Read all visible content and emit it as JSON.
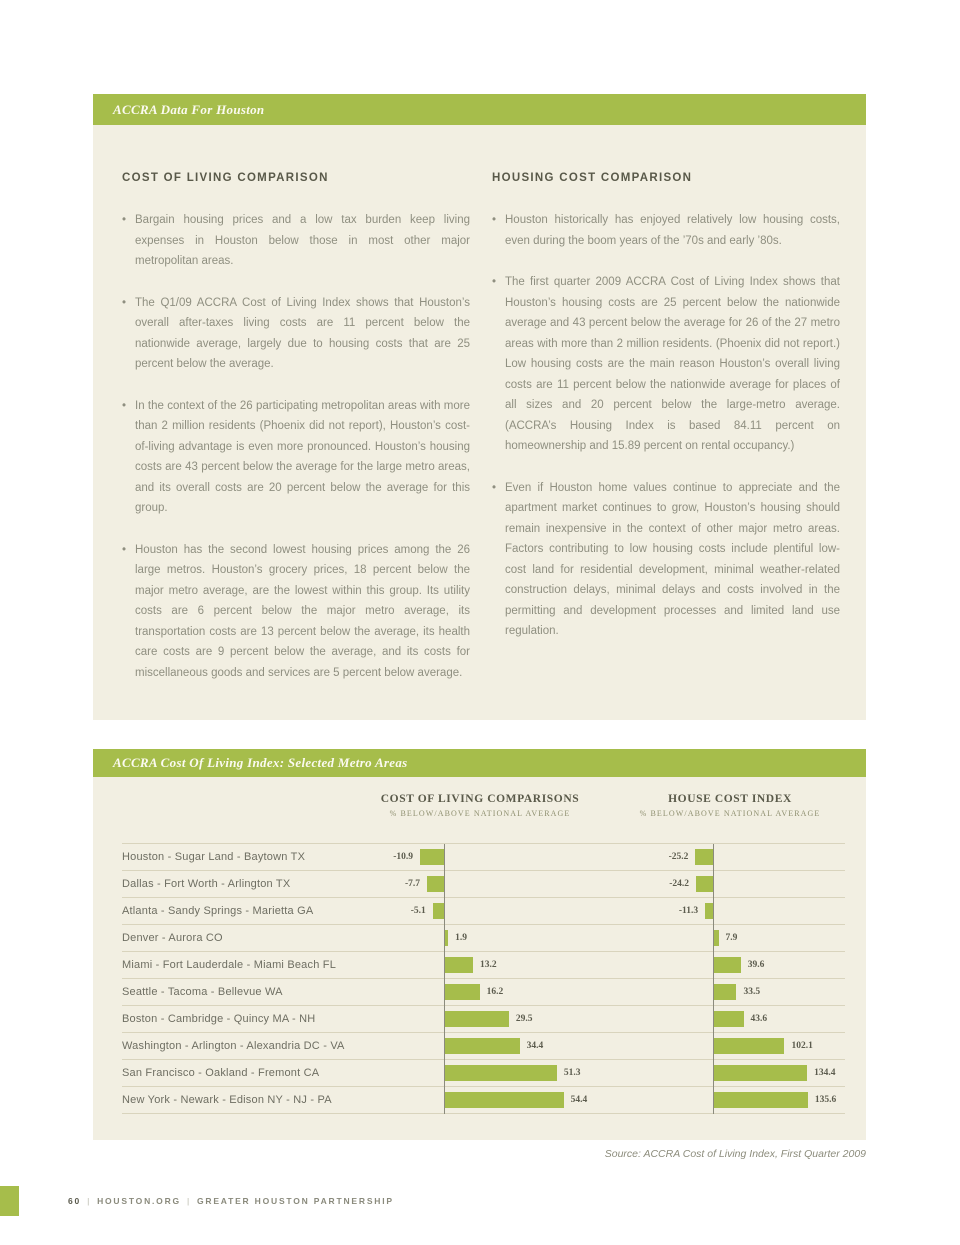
{
  "colors": {
    "accent_green": "#a6bd4b",
    "panel_cream": "#f2efe2",
    "body_text": "#8f8f80",
    "heading_text": "#595949"
  },
  "accra_section": {
    "header": "ACCRA Data For Houston",
    "columns": [
      {
        "heading": "COST OF LIVING COMPARISON",
        "bullets": [
          "Bargain housing prices and a low tax burden keep living expenses in Houston below those in most other major metropolitan areas.",
          "The Q1/09 ACCRA Cost of Living Index shows that Houston’s overall after-taxes living costs are 11 percent below the nationwide average, largely due to housing costs that are 25 percent below the average.",
          "In the context of the 26 participating metropolitan areas with more than 2 million residents (Phoenix did not report), Houston’s cost-of-living advantage is even more pronounced. Houston’s housing costs are 43 percent below the average for the large metro areas, and its overall costs are 20 percent below the average for this group.",
          "Houston has the second lowest housing prices among the 26 large metros. Houston’s grocery prices, 18 percent below the major metro average, are the lowest within this group. Its utility costs are 6 percent below the major metro average, its transportation costs are 13 percent below the average, its health care costs are 9 percent below the average, and its costs for miscellaneous goods and services are 5 percent below average."
        ]
      },
      {
        "heading": "HOUSING COST COMPARISON",
        "bullets": [
          "Houston historically has enjoyed relatively low housing costs, even during the boom years of the ’70s and early ’80s.",
          "The first quarter 2009 ACCRA Cost of Living Index shows that Houston’s housing costs are 25 percent below the nationwide average and 43 percent below the average for 26 of the 27 metro areas with more than 2 million residents. (Phoenix did not report.) Low housing costs are the main reason Houston’s overall living costs are 11 percent below the nationwide average for places of all sizes and 20 percent below the large-metro average. (ACCRA’s Housing Index is based 84.11 percent on homeownership and 15.89 percent on rental occupancy.)",
          "Even if Houston home values continue to appreciate and the apartment market continues to grow, Houston’s housing should remain inexpensive in the context of other major metro areas. Factors contributing to low housing costs include plentiful low-cost land for residential development, minimal weather-related construction delays, minimal delays and costs involved in the permitting and development processes and limited land use regulation."
        ]
      }
    ]
  },
  "chart_section": {
    "header": "ACCRA Cost Of Living Index: Selected Metro Areas",
    "source_note": "Source: ACCRA Cost of Living Index, First Quarter 2009"
  },
  "chart_data": {
    "type": "bar",
    "orientation": "horizontal",
    "title": "ACCRA Cost Of Living Index: Selected Metro Areas",
    "categories": [
      "Houston - Sugar Land - Baytown TX",
      "Dallas - Fort Worth - Arlington TX",
      "Atlanta - Sandy Springs - Marietta GA",
      "Denver - Aurora CO",
      "Miami - Fort Lauderdale - Miami Beach FL",
      "Seattle - Tacoma - Bellevue WA",
      "Boston - Cambridge - Quincy MA - NH",
      "Washington - Arlington - Alexandria DC - VA",
      "San Francisco - Oakland - Fremont CA",
      "New York - Newark - Edison NY - NJ - PA"
    ],
    "series": [
      {
        "name": "COST OF LIVING COMPARISONS",
        "subtitle": "% BELOW/ABOVE NATIONAL AVERAGE",
        "values": [
          -10.9,
          -7.7,
          -5.1,
          1.9,
          13.2,
          16.2,
          29.5,
          34.4,
          51.3,
          54.4
        ]
      },
      {
        "name": "HOUSE COST INDEX",
        "subtitle": "% BELOW/ABOVE NATIONAL AVERAGE",
        "values": [
          -25.2,
          -24.2,
          -11.3,
          7.9,
          39.6,
          33.5,
          43.6,
          102.1,
          134.4,
          135.6
        ]
      }
    ],
    "bar_color": "#a6bd4b",
    "zero_baseline": true,
    "grid": "row-separators-only",
    "source": "Source: ACCRA Cost of Living Index, First Quarter 2009"
  },
  "footer": {
    "page_number": "60",
    "separator": "|",
    "site": "HOUSTON.ORG",
    "org": "GREATER HOUSTON PARTNERSHIP"
  }
}
